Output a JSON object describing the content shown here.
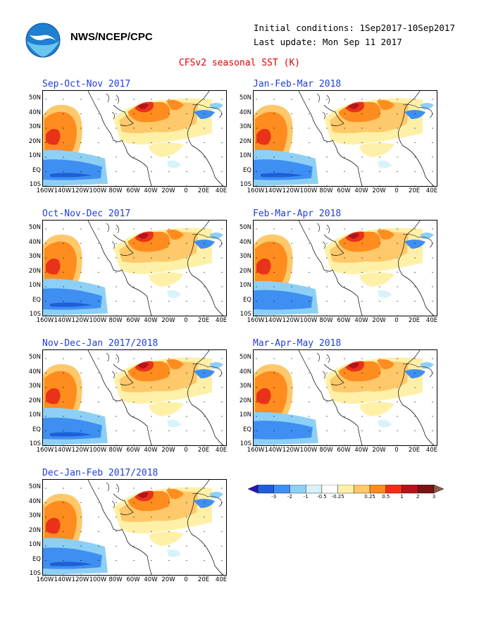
{
  "header": {
    "org": "NWS/NCEP/CPC",
    "initial_conditions": "Initial conditions: 1Sep2017-10Sep2017",
    "last_update": "Last update: Mon Sep 11 2017",
    "title": "CFSv2 seasonal SST (K)",
    "logo_icon": "noaa-logo-icon"
  },
  "chart_data": {
    "type": "heatmap",
    "variable": "SST anomaly (K)",
    "lat_ticks": [
      "50N",
      "40N",
      "30N",
      "20N",
      "10N",
      "EQ",
      "10S"
    ],
    "lon_ticks": [
      "160W",
      "140W",
      "120W",
      "100W",
      "80W",
      "60W",
      "40W",
      "20W",
      "0",
      "20E",
      "40E"
    ],
    "colorbar": {
      "levels": [
        "-3",
        "-2",
        "-1",
        "-0.5",
        "-0.25",
        "0.25",
        "0.5",
        "1",
        "2",
        "3"
      ],
      "colors": [
        "#2a16b8",
        "#1e5fd8",
        "#3f8ff2",
        "#8ed0f5",
        "#d8f2fb",
        "#ffffff",
        "#fff0a8",
        "#ffc86a",
        "#ff8c1e",
        "#e8321a",
        "#b5151a",
        "#7a1414",
        "#8a5a4a"
      ]
    },
    "panels": [
      {
        "title": "Sep-Oct-Nov 2017",
        "enso": "la-nina",
        "strength": 0.85,
        "natl": 0.9
      },
      {
        "title": "Oct-Nov-Dec 2017",
        "enso": "la-nina",
        "strength": 0.95,
        "natl": 0.85
      },
      {
        "title": "Nov-Dec-Jan 2017/2018",
        "enso": "la-nina",
        "strength": 1.0,
        "natl": 0.8
      },
      {
        "title": "Dec-Jan-Feb 2017/2018",
        "enso": "la-nina",
        "strength": 0.95,
        "natl": 0.75
      },
      {
        "title": "Jan-Feb-Mar 2018",
        "enso": "la-nina",
        "strength": 0.85,
        "natl": 1.0
      },
      {
        "title": "Feb-Mar-Apr 2018",
        "enso": "la-nina",
        "strength": 0.7,
        "natl": 1.0
      },
      {
        "title": "Mar-Apr-May 2018",
        "enso": "la-nina",
        "strength": 0.55,
        "natl": 0.95
      }
    ]
  }
}
